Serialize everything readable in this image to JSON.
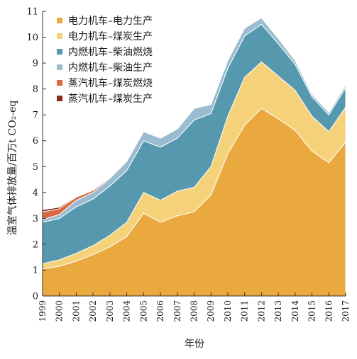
{
  "chart_data": {
    "type": "area",
    "stacked": true,
    "xlabel": "年份",
    "ylabel": "温室气体排放量/百万t CO₂-eq",
    "ylim": [
      0,
      11
    ],
    "yticks": [
      0,
      1,
      2,
      3,
      4,
      5,
      6,
      7,
      8,
      9,
      10,
      11
    ],
    "x": [
      1999,
      2000,
      2001,
      2002,
      2003,
      2004,
      2005,
      2006,
      2007,
      2008,
      2009,
      2010,
      2011,
      2012,
      2013,
      2014,
      2015,
      2016,
      2017
    ],
    "legend_position": "top-left",
    "grid": false,
    "series": [
      {
        "name": "电力机车–电力生产",
        "color": "#E9A93E",
        "values": [
          1.05,
          1.15,
          1.35,
          1.6,
          1.9,
          2.3,
          3.2,
          2.85,
          3.1,
          3.25,
          3.9,
          5.5,
          6.6,
          7.25,
          6.85,
          6.4,
          5.6,
          5.15,
          5.95
        ]
      },
      {
        "name": "电力机车–煤炭生产",
        "color": "#F5D27A",
        "values": [
          0.2,
          0.25,
          0.3,
          0.35,
          0.45,
          0.55,
          0.8,
          0.85,
          0.95,
          0.95,
          1.1,
          1.45,
          1.85,
          1.8,
          1.65,
          1.55,
          1.35,
          1.2,
          1.35
        ]
      },
      {
        "name": "内燃机车–柴油燃烧",
        "color": "#5699AF",
        "values": [
          1.6,
          1.6,
          1.8,
          1.8,
          1.9,
          2.0,
          2.0,
          2.05,
          2.05,
          2.6,
          2.05,
          1.85,
          1.6,
          1.45,
          1.25,
          1.0,
          0.75,
          0.65,
          0.75
        ]
      },
      {
        "name": "内燃机车–柴油生产",
        "color": "#9BBCD0",
        "values": [
          0.1,
          0.15,
          0.25,
          0.25,
          0.3,
          0.35,
          0.35,
          0.35,
          0.35,
          0.45,
          0.35,
          0.3,
          0.3,
          0.25,
          0.2,
          0.15,
          0.1,
          0.1,
          0.1
        ]
      },
      {
        "name": "蒸汽机车–煤炭燃烧",
        "color": "#D96A3F",
        "values": [
          0.3,
          0.22,
          0.12,
          0.08,
          0.03,
          0.01,
          0,
          0,
          0,
          0,
          0,
          0,
          0,
          0,
          0,
          0,
          0,
          0,
          0
        ]
      },
      {
        "name": "蒸汽机车–煤炭生产",
        "color": "#8B2A1A",
        "values": [
          0.08,
          0.06,
          0.03,
          0.02,
          0.01,
          0,
          0,
          0,
          0,
          0,
          0,
          0,
          0,
          0,
          0,
          0,
          0,
          0,
          0
        ]
      }
    ]
  }
}
